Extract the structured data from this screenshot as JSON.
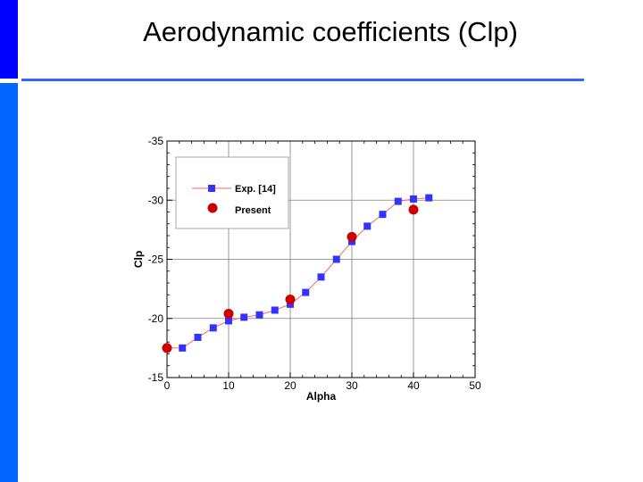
{
  "slide": {
    "title": "Aerodynamic coefficients (Clp)"
  },
  "colors": {
    "bar_top": "#0000ff",
    "bar_bottom": "#0066ff",
    "rule": "#3366ff",
    "exp_series": "#3333ff",
    "exp_line": "#ff6666",
    "present_series": "#cc0000"
  },
  "chart_data": {
    "type": "scatter",
    "title": "",
    "xlabel": "Alpha",
    "ylabel": "Clp",
    "xlim": [
      0,
      50
    ],
    "ylim": [
      -15,
      -35
    ],
    "y_axis_reversed": true,
    "grid": true,
    "legend_position": "top-left",
    "x_ticks": [
      "0",
      "10",
      "20",
      "30",
      "40",
      "50"
    ],
    "x_tick_values": [
      0,
      10,
      20,
      30,
      40,
      50
    ],
    "y_ticks": [
      "-35",
      "-30",
      "-25",
      "-20",
      "-15"
    ],
    "y_tick_values": [
      -35,
      -30,
      -25,
      -20,
      -15
    ],
    "series": [
      {
        "name": "Exp. [14]",
        "marker": "square",
        "line": true,
        "x": [
          0,
          2.5,
          5,
          7.5,
          10,
          12.5,
          15,
          17.5,
          20,
          22.5,
          25,
          27.5,
          30,
          32.5,
          35,
          37.5,
          40,
          42.5
        ],
        "y": [
          -17.5,
          -17.5,
          -18.4,
          -19.2,
          -19.8,
          -20.1,
          -20.3,
          -20.7,
          -21.2,
          -22.2,
          -23.5,
          -25.0,
          -26.5,
          -27.8,
          -28.8,
          -29.9,
          -30.1,
          -30.2
        ]
      },
      {
        "name": "Present",
        "marker": "circle",
        "line": false,
        "x": [
          0,
          10,
          20,
          30,
          40
        ],
        "y": [
          -17.5,
          -20.4,
          -21.6,
          -26.9,
          -29.2
        ]
      }
    ]
  }
}
